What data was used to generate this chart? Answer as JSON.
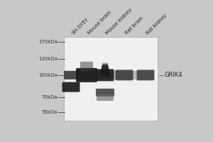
{
  "fig_width": 3.0,
  "fig_height": 2.0,
  "dpi": 100,
  "bg_color": "#c8c8c8",
  "blot_bg": "#f2f2f2",
  "mw_markers": [
    170,
    130,
    100,
    70,
    55
  ],
  "mw_labels": [
    "170kDa",
    "130kDa",
    "100kDa",
    "70kDa",
    "55kDa"
  ],
  "lane_labels": [
    "SH-SY5Y",
    "Mouse brain",
    "Mouse kidney",
    "Rat brain",
    "Rat kidney"
  ],
  "grik4_label": "GRIK4",
  "label_fontsize": 5.2,
  "marker_fontsize": 5.0,
  "annotation_fontsize": 6.0,
  "mw_min": 48,
  "mw_max": 185
}
